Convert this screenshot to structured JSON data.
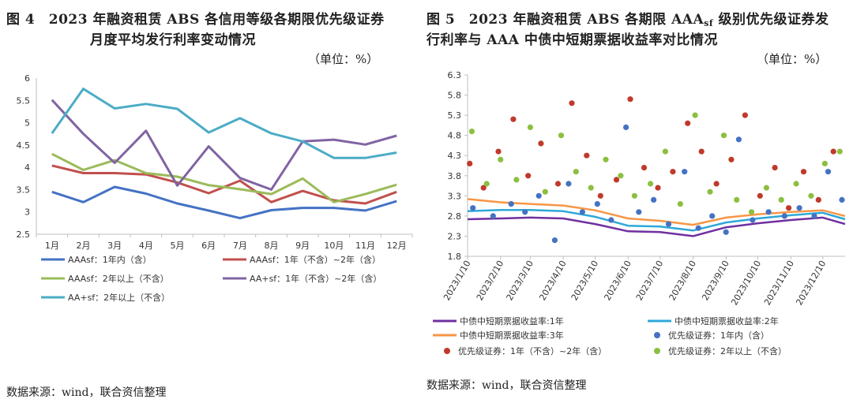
{
  "left": {
    "title_line1": "图 4　2023 年融资租赁 ABS 各信用等级各期限优先级证券",
    "title_line2": "月度平均发行利率变动情况",
    "unit": "（单位：%）",
    "source": "数据来源：wind，联合资信整理"
  },
  "right": {
    "title_prefix": "图 5　2023 年融资租赁 ABS 各期限 AAA",
    "title_sub": "sf",
    "title_suffix": " 级别优先级证券发",
    "title_line2": "行利率与 AAA 中债中短期票据收益率对比情况",
    "unit": "（单位：%）",
    "source": "数据来源：wind，联合资信整理"
  },
  "chart_data": [
    {
      "type": "line",
      "categories": [
        "1月",
        "2月",
        "3月",
        "4月",
        "5月",
        "6月",
        "7月",
        "8月",
        "9月",
        "10月",
        "11月",
        "12月"
      ],
      "ylim": [
        2.5,
        6
      ],
      "yticks": [
        "2.5",
        "3",
        "3.5",
        "4",
        "4.5",
        "5",
        "5.5",
        "6"
      ],
      "grid": false,
      "legend_position": "bottom",
      "series": [
        {
          "name": "AAAsf：1年内（含）",
          "color": "#4472c4",
          "values": [
            3.45,
            3.22,
            3.56,
            3.41,
            3.19,
            3.03,
            2.86,
            3.04,
            3.09,
            3.09,
            3.03,
            3.24
          ]
        },
        {
          "name": "AAAsf：1年（不含）~2年（含）",
          "color": "#c0504d",
          "values": [
            4.04,
            3.87,
            3.87,
            3.84,
            3.66,
            3.42,
            3.7,
            3.22,
            3.47,
            3.26,
            3.19,
            3.45
          ]
        },
        {
          "name": "AAAsf：2年以上（不含）",
          "color": "#9bbb59",
          "values": [
            4.3,
            3.94,
            4.16,
            3.87,
            3.79,
            3.6,
            3.51,
            3.4,
            3.75,
            3.22,
            3.4,
            3.61
          ]
        },
        {
          "name": "AA+sf：1年（不含）~2年（含）",
          "color": "#8064a2",
          "values": [
            5.51,
            4.75,
            4.1,
            4.82,
            3.59,
            4.47,
            3.76,
            3.5,
            4.58,
            4.62,
            4.51,
            4.71
          ]
        },
        {
          "name": "AA+sf：2年以上（不含）",
          "color": "#4bacc6",
          "values": [
            4.76,
            5.76,
            5.32,
            5.42,
            5.31,
            4.78,
            5.1,
            4.76,
            4.58,
            4.21,
            4.21,
            4.33
          ]
        }
      ]
    },
    {
      "type": "scatter",
      "x_range": [
        "2023/1/10",
        "2023/12/31"
      ],
      "x_tick_labels": [
        "2023/1/10",
        "2023/2/10",
        "2023/3/10",
        "2023/4/10",
        "2023/5/10",
        "2023/6/10",
        "2023/7/10",
        "2023/8/10",
        "2023/9/10",
        "2023/10/10",
        "2023/11/10",
        "2023/12/10"
      ],
      "ylim": [
        1.8,
        6.3
      ],
      "yticks": [
        "1.8",
        "2.3",
        "2.8",
        "3.3",
        "3.8",
        "4.3",
        "4.8",
        "5.3",
        "5.8",
        "6.3"
      ],
      "grid": false,
      "legend_position": "bottom",
      "line_series": [
        {
          "name": "中债中短期票据收益率:1年",
          "color": "#7030a0",
          "points": [
            [
              "2023/1/10",
              2.72
            ],
            [
              "2023/2/10",
              2.74
            ],
            [
              "2023/3/10",
              2.76
            ],
            [
              "2023/4/10",
              2.74
            ],
            [
              "2023/5/10",
              2.6
            ],
            [
              "2023/6/10",
              2.42
            ],
            [
              "2023/7/10",
              2.4
            ],
            [
              "2023/8/10",
              2.3
            ],
            [
              "2023/9/10",
              2.52
            ],
            [
              "2023/10/10",
              2.62
            ],
            [
              "2023/11/10",
              2.7
            ],
            [
              "2023/12/10",
              2.76
            ],
            [
              "2023/12/31",
              2.6
            ]
          ]
        },
        {
          "name": "中债中短期票据收益率:2年",
          "color": "#2ea8d8",
          "points": [
            [
              "2023/1/10",
              2.92
            ],
            [
              "2023/2/10",
              2.95
            ],
            [
              "2023/3/10",
              2.95
            ],
            [
              "2023/4/10",
              2.92
            ],
            [
              "2023/5/10",
              2.78
            ],
            [
              "2023/6/10",
              2.56
            ],
            [
              "2023/7/10",
              2.54
            ],
            [
              "2023/8/10",
              2.44
            ],
            [
              "2023/9/10",
              2.64
            ],
            [
              "2023/10/10",
              2.74
            ],
            [
              "2023/11/10",
              2.82
            ],
            [
              "2023/12/10",
              2.88
            ],
            [
              "2023/12/31",
              2.72
            ]
          ]
        },
        {
          "name": "中债中短期票据收益率:3年",
          "color": "#f79646",
          "points": [
            [
              "2023/1/10",
              3.22
            ],
            [
              "2023/2/10",
              3.14
            ],
            [
              "2023/3/10",
              3.1
            ],
            [
              "2023/4/10",
              3.06
            ],
            [
              "2023/5/10",
              2.94
            ],
            [
              "2023/6/10",
              2.74
            ],
            [
              "2023/7/10",
              2.68
            ],
            [
              "2023/8/10",
              2.58
            ],
            [
              "2023/9/10",
              2.76
            ],
            [
              "2023/10/10",
              2.84
            ],
            [
              "2023/11/10",
              2.9
            ],
            [
              "2023/12/10",
              2.94
            ],
            [
              "2023/12/31",
              2.8
            ]
          ]
        }
      ],
      "scatter_series": [
        {
          "name": "优先级证券：1年内（含）",
          "color": "#4472c4",
          "points": [
            [
              "2023/1/15",
              3.0
            ],
            [
              "2023/2/3",
              2.8
            ],
            [
              "2023/2/20",
              3.1
            ],
            [
              "2023/3/5",
              2.9
            ],
            [
              "2023/3/18",
              3.3
            ],
            [
              "2023/4/2",
              2.2
            ],
            [
              "2023/4/15",
              3.6
            ],
            [
              "2023/4/28",
              2.9
            ],
            [
              "2023/5/12",
              3.1
            ],
            [
              "2023/5/25",
              2.7
            ],
            [
              "2023/6/8",
              5.0
            ],
            [
              "2023/6/20",
              2.9
            ],
            [
              "2023/7/4",
              3.2
            ],
            [
              "2023/7/18",
              2.6
            ],
            [
              "2023/8/2",
              3.9
            ],
            [
              "2023/8/15",
              2.5
            ],
            [
              "2023/8/28",
              2.8
            ],
            [
              "2023/9/10",
              2.4
            ],
            [
              "2023/9/22",
              4.7
            ],
            [
              "2023/10/5",
              2.7
            ],
            [
              "2023/10/20",
              2.9
            ],
            [
              "2023/11/4",
              2.8
            ],
            [
              "2023/11/18",
              3.0
            ],
            [
              "2023/12/2",
              2.8
            ],
            [
              "2023/12/15",
              3.9
            ],
            [
              "2023/12/28",
              3.2
            ]
          ]
        },
        {
          "name": "优先级证券：1年（不含）~2年（含）",
          "color": "#c0392b",
          "points": [
            [
              "2023/1/12",
              4.1
            ],
            [
              "2023/1/25",
              3.5
            ],
            [
              "2023/2/8",
              4.4
            ],
            [
              "2023/2/22",
              5.2
            ],
            [
              "2023/3/8",
              3.8
            ],
            [
              "2023/3/20",
              4.6
            ],
            [
              "2023/4/5",
              3.6
            ],
            [
              "2023/4/18",
              5.6
            ],
            [
              "2023/5/2",
              4.3
            ],
            [
              "2023/5/15",
              3.3
            ],
            [
              "2023/5/30",
              3.7
            ],
            [
              "2023/6/12",
              5.7
            ],
            [
              "2023/6/25",
              4.0
            ],
            [
              "2023/7/8",
              3.5
            ],
            [
              "2023/7/22",
              3.9
            ],
            [
              "2023/8/5",
              5.1
            ],
            [
              "2023/8/18",
              4.4
            ],
            [
              "2023/9/1",
              3.6
            ],
            [
              "2023/9/15",
              4.2
            ],
            [
              "2023/9/28",
              5.3
            ],
            [
              "2023/10/12",
              3.3
            ],
            [
              "2023/10/26",
              4.0
            ],
            [
              "2023/11/8",
              3.0
            ],
            [
              "2023/11/22",
              3.9
            ],
            [
              "2023/12/6",
              3.2
            ],
            [
              "2023/12/20",
              4.4
            ]
          ]
        },
        {
          "name": "优先级证券：2年以上（不含）",
          "color": "#8cbf3f",
          "points": [
            [
              "2023/1/14",
              4.9
            ],
            [
              "2023/1/28",
              3.6
            ],
            [
              "2023/2/10",
              4.2
            ],
            [
              "2023/2/25",
              3.7
            ],
            [
              "2023/3/10",
              5.0
            ],
            [
              "2023/3/24",
              3.4
            ],
            [
              "2023/4/8",
              4.8
            ],
            [
              "2023/4/22",
              3.9
            ],
            [
              "2023/5/6",
              3.5
            ],
            [
              "2023/5/20",
              4.2
            ],
            [
              "2023/6/3",
              3.8
            ],
            [
              "2023/6/16",
              3.3
            ],
            [
              "2023/7/1",
              3.6
            ],
            [
              "2023/7/15",
              4.4
            ],
            [
              "2023/7/29",
              3.1
            ],
            [
              "2023/8/12",
              5.3
            ],
            [
              "2023/8/26",
              3.4
            ],
            [
              "2023/9/8",
              4.8
            ],
            [
              "2023/9/20",
              3.2
            ],
            [
              "2023/10/4",
              2.9
            ],
            [
              "2023/10/18",
              3.5
            ],
            [
              "2023/11/1",
              3.2
            ],
            [
              "2023/11/15",
              3.6
            ],
            [
              "2023/11/29",
              3.3
            ],
            [
              "2023/12/12",
              4.1
            ],
            [
              "2023/12/26",
              4.4
            ]
          ]
        }
      ]
    }
  ]
}
